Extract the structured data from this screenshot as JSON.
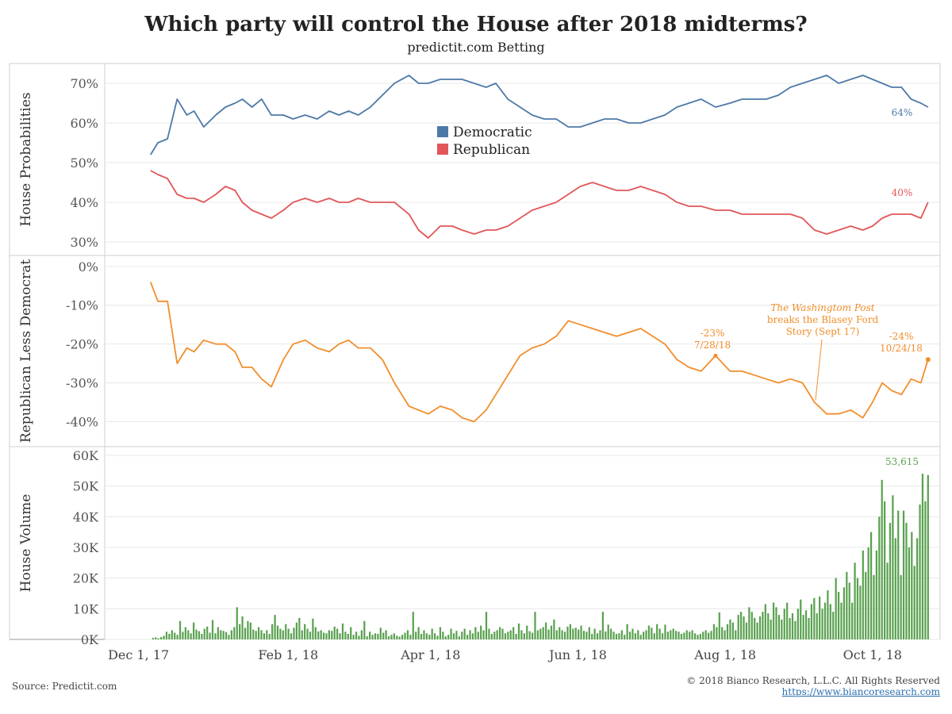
{
  "title": "Which party will control the House after 2018 midterms?",
  "subtitle": "predictit.com Betting",
  "footer": {
    "source": "Source: Predictit.com",
    "copyright": "© 2018 Bianco Research, L.L.C. All Rights Reserved",
    "website": "https://www.biancoresearch.com"
  },
  "colors": {
    "democratic": "#4e79a7",
    "republican": "#e15759",
    "spread": "#f28e2b",
    "volume": "#59a14f",
    "grid": "#e8e8e8"
  },
  "chart_data": [
    {
      "type": "line",
      "ylabel": "House Probabilities",
      "ylim": [
        28,
        73
      ],
      "yticks": [
        "70%",
        "60%",
        "50%",
        "40%",
        "30%"
      ],
      "yticks_values": [
        70,
        60,
        50,
        40,
        30
      ],
      "legend": {
        "placement": "center",
        "entries": [
          "Democratic",
          "Republican"
        ]
      },
      "x": [
        "2017-12-06",
        "2017-12-09",
        "2017-12-13",
        "2017-12-17",
        "2017-12-21",
        "2017-12-24",
        "2017-12-28",
        "2018-01-02",
        "2018-01-06",
        "2018-01-10",
        "2018-01-13",
        "2018-01-17",
        "2018-01-21",
        "2018-01-25",
        "2018-01-30",
        "2018-02-03",
        "2018-02-08",
        "2018-02-13",
        "2018-02-18",
        "2018-02-22",
        "2018-02-26",
        "2018-03-02",
        "2018-03-07",
        "2018-03-12",
        "2018-03-17",
        "2018-03-23",
        "2018-03-27",
        "2018-03-31",
        "2018-04-05",
        "2018-04-10",
        "2018-04-14",
        "2018-04-19",
        "2018-04-24",
        "2018-04-28",
        "2018-05-03",
        "2018-05-08",
        "2018-05-13",
        "2018-05-18",
        "2018-05-23",
        "2018-05-28",
        "2018-06-02",
        "2018-06-07",
        "2018-06-12",
        "2018-06-17",
        "2018-06-22",
        "2018-06-27",
        "2018-07-02",
        "2018-07-07",
        "2018-07-12",
        "2018-07-17",
        "2018-07-22",
        "2018-07-28",
        "2018-08-03",
        "2018-08-08",
        "2018-08-13",
        "2018-08-18",
        "2018-08-23",
        "2018-08-28",
        "2018-09-02",
        "2018-09-07",
        "2018-09-12",
        "2018-09-17",
        "2018-09-22",
        "2018-09-27",
        "2018-10-01",
        "2018-10-05",
        "2018-10-09",
        "2018-10-13",
        "2018-10-17",
        "2018-10-21",
        "2018-10-24"
      ],
      "series": [
        {
          "name": "Democratic",
          "values": [
            52,
            55,
            56,
            66,
            62,
            63,
            59,
            62,
            64,
            65,
            66,
            64,
            66,
            62,
            62,
            61,
            62,
            61,
            63,
            62,
            63,
            62,
            64,
            67,
            70,
            72,
            70,
            70,
            71,
            71,
            71,
            70,
            69,
            70,
            66,
            64,
            62,
            61,
            61,
            59,
            59,
            60,
            61,
            61,
            60,
            60,
            61,
            62,
            64,
            65,
            66,
            64,
            65,
            66,
            66,
            66,
            67,
            69,
            70,
            71,
            72,
            70,
            71,
            72,
            71,
            70,
            69,
            69,
            66,
            65,
            64
          ]
        },
        {
          "name": "Republican",
          "values": [
            48,
            47,
            46,
            42,
            41,
            41,
            40,
            42,
            44,
            43,
            40,
            38,
            37,
            36,
            38,
            40,
            41,
            40,
            41,
            40,
            40,
            41,
            40,
            40,
            40,
            37,
            33,
            31,
            34,
            34,
            33,
            32,
            33,
            33,
            34,
            36,
            38,
            39,
            40,
            42,
            44,
            45,
            44,
            43,
            43,
            44,
            43,
            42,
            40,
            39,
            39,
            38,
            38,
            37,
            37,
            37,
            37,
            37,
            36,
            33,
            32,
            33,
            34,
            33,
            34,
            36,
            37,
            37,
            37,
            36,
            40
          ]
        }
      ],
      "end_labels": [
        "64%",
        "40%"
      ]
    },
    {
      "type": "line",
      "ylabel": "Republican Less Democrat",
      "ylim": [
        -45,
        2
      ],
      "yticks": [
        "0%",
        "-10%",
        "-20%",
        "-30%",
        "-40%"
      ],
      "yticks_values": [
        0,
        -10,
        -20,
        -30,
        -40
      ],
      "series": [
        {
          "name": "",
          "values": [
            -4,
            -9,
            -9,
            -25,
            -21,
            -22,
            -19,
            -20,
            -20,
            -22,
            -26,
            -26,
            -29,
            -31,
            -24,
            -20,
            -19,
            -21,
            -22,
            -20,
            -19,
            -21,
            -21,
            -24,
            -30,
            -36,
            -37,
            -38,
            -36,
            -37,
            -39,
            -40,
            -37,
            -33,
            -28,
            -23,
            -21,
            -20,
            -18,
            -14,
            -15,
            -16,
            -17,
            -18,
            -17,
            -16,
            -18,
            -20,
            -24,
            -26,
            -27,
            -23,
            -27,
            -27,
            -28,
            -29,
            -30,
            -29,
            -30,
            -35,
            -38,
            -38,
            -37,
            -39,
            -35,
            -30,
            -32,
            -33,
            -29,
            -30,
            -24
          ]
        }
      ],
      "annotations": [
        {
          "line1": "-23%",
          "line2": "7/28/18"
        },
        {
          "line1": "-24%",
          "line2": "10/24/18"
        },
        {
          "italic": "The Washingtom Post",
          "line2": "breaks the Blasey Ford",
          "line3": "Story (Sept 17)"
        }
      ]
    },
    {
      "type": "bar",
      "ylabel": "House Volume",
      "ylim": [
        0,
        60000
      ],
      "yticks": [
        "60K",
        "50K",
        "40K",
        "30K",
        "20K",
        "10K",
        "0K"
      ],
      "yticks_values": [
        60000,
        50000,
        40000,
        30000,
        20000,
        10000,
        0
      ],
      "x_start": "2017-12-07",
      "x_end": "2018-10-24",
      "values": [
        500,
        700,
        400,
        800,
        1200,
        2500,
        1800,
        3000,
        2200,
        1500,
        6000,
        2500,
        4000,
        3000,
        2000,
        5500,
        3200,
        2700,
        1800,
        3500,
        4200,
        2200,
        6300,
        2000,
        4000,
        3000,
        2800,
        2400,
        1500,
        3000,
        4000,
        10500,
        5000,
        7500,
        3800,
        6000,
        5500,
        3200,
        2800,
        4000,
        3000,
        2000,
        3000,
        1800,
        5000,
        8000,
        4500,
        3500,
        3000,
        5000,
        3500,
        2000,
        3800,
        5500,
        7000,
        3000,
        5000,
        3500,
        2500,
        6800,
        4000,
        2600,
        3000,
        2200,
        2000,
        3000,
        2800,
        4200,
        3500,
        2000,
        5200,
        2500,
        1800,
        4000,
        1500,
        2500,
        1200,
        3000,
        6000,
        1000,
        2500,
        1500,
        2000,
        1800,
        3800,
        2200,
        3000,
        1000,
        1500,
        2000,
        1200,
        900,
        1500,
        2200,
        3000,
        1500,
        9000,
        2500,
        4000,
        1800,
        3000,
        2000,
        1500,
        3500,
        2000,
        1200,
        4000,
        2500,
        1000,
        1500,
        3500,
        2000,
        2800,
        1000,
        2500,
        3500,
        1500,
        3000,
        2000,
        4000,
        2500,
        4500,
        3000,
        9000,
        3500,
        1800,
        2500,
        3000,
        4000,
        3500,
        2000,
        2500,
        3000,
        4000,
        1800,
        5200,
        3000,
        2000,
        4500,
        2700,
        2200,
        9000,
        3000,
        3500,
        4000,
        5500,
        3200,
        4500,
        6500,
        3000,
        4000,
        3000,
        2500,
        4200,
        5000,
        3500,
        3800,
        3200,
        4500,
        2800,
        2500,
        4000,
        1800,
        3500,
        2000,
        3000,
        9000,
        2600,
        4800,
        3500,
        2500,
        1800,
        2000,
        3000,
        1500,
        5000,
        2500,
        3500,
        2000,
        3000,
        1500,
        2500,
        3000,
        4500,
        3800,
        2000,
        5000,
        3500,
        2000,
        4800,
        2500,
        3000,
        3500,
        2800,
        2500,
        1800,
        2200,
        3000,
        2500,
        3000,
        2000,
        1500,
        1800,
        2500,
        3000,
        2200,
        2800,
        5000,
        4000,
        8800,
        4000,
        3000,
        5000,
        6500,
        5500,
        3000,
        8000,
        9000,
        7500,
        5500,
        10500,
        9000,
        7000,
        5500,
        7500,
        9000,
        11500,
        8500,
        6500,
        12000,
        10500,
        8000,
        6500,
        10000,
        12000,
        7000,
        8500,
        6000,
        10000,
        13000,
        8000,
        9500,
        7000,
        11500,
        13500,
        8500,
        14000,
        10000,
        12000,
        16000,
        11500,
        9000,
        20000,
        15500,
        12000,
        17000,
        22000,
        18500,
        12000,
        25000,
        20000,
        17500,
        29000,
        22000,
        30000,
        35000,
        21000,
        29000,
        40000,
        52000,
        45000,
        25000,
        38000,
        47000,
        33000,
        42000,
        21000,
        42000,
        38000,
        30000,
        35000,
        24000,
        33000,
        44000,
        54000,
        45000,
        53615
      ],
      "end_label": "53,615"
    }
  ],
  "x_axis": {
    "ticks": [
      "Dec 1, 17",
      "Feb 1, 18",
      "Apr 1, 18",
      "Jun 1, 18",
      "Aug 1, 18",
      "Oct 1, 18"
    ],
    "tick_dates": [
      "2017-12-01",
      "2018-02-01",
      "2018-04-01",
      "2018-06-01",
      "2018-08-01",
      "2018-10-01"
    ],
    "range": [
      "2017-11-17",
      "2018-10-29"
    ]
  }
}
